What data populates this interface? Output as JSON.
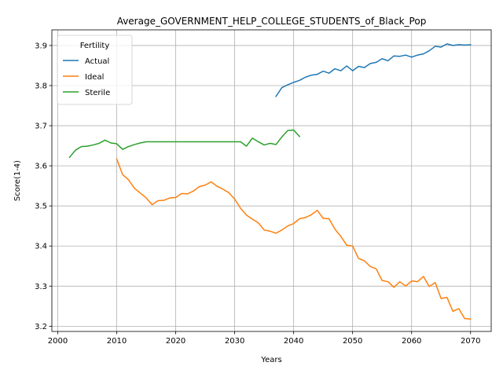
{
  "chart_data": {
    "type": "line",
    "title": "Average_GOVERNMENT_HELP_COLLEGE_STUDENTS_of_Black_Pop",
    "xlabel": "Years",
    "ylabel": "Score(1-4)",
    "xlim": [
      1999,
      2073.5
    ],
    "ylim": [
      3.187,
      3.939
    ],
    "xticks": [
      2000,
      2010,
      2020,
      2030,
      2040,
      2050,
      2060,
      2070
    ],
    "yticks": [
      3.2,
      3.3,
      3.4,
      3.5,
      3.6,
      3.7,
      3.8,
      3.9
    ],
    "xtick_labels": [
      "2000",
      "2010",
      "2020",
      "2030",
      "2040",
      "2050",
      "2060",
      "2070"
    ],
    "ytick_labels": [
      "3.2",
      "3.3",
      "3.4",
      "3.5",
      "3.6",
      "3.7",
      "3.8",
      "3.9"
    ],
    "grid": true,
    "legend": {
      "title": "Fertility",
      "position": "top-left"
    },
    "series": [
      {
        "name": "Actual",
        "color": "#1f77b4",
        "x": [
          2037,
          2038,
          2039,
          2040,
          2041,
          2042,
          2043,
          2044,
          2045,
          2046,
          2047,
          2048,
          2049,
          2050,
          2051,
          2052,
          2053,
          2054,
          2055,
          2056,
          2057,
          2058,
          2059,
          2060,
          2061,
          2062,
          2063,
          2064,
          2065,
          2066,
          2067,
          2068,
          2069,
          2070
        ],
        "values": [
          3.773,
          3.795,
          3.802,
          3.808,
          3.813,
          3.821,
          3.826,
          3.828,
          3.836,
          3.831,
          3.842,
          3.837,
          3.849,
          3.837,
          3.848,
          3.845,
          3.855,
          3.858,
          3.867,
          3.862,
          3.874,
          3.873,
          3.876,
          3.871,
          3.876,
          3.879,
          3.887,
          3.898,
          3.896,
          3.904,
          3.9,
          3.902,
          3.901,
          3.902
        ]
      },
      {
        "name": "Ideal",
        "color": "#ff7f0e",
        "x": [
          2010,
          2011,
          2012,
          2013,
          2014,
          2015,
          2016,
          2017,
          2018,
          2019,
          2020,
          2021,
          2022,
          2023,
          2024,
          2025,
          2026,
          2027,
          2028,
          2029,
          2030,
          2031,
          2032,
          2033,
          2034,
          2035,
          2036,
          2037,
          2038,
          2039,
          2040,
          2041,
          2042,
          2043,
          2044,
          2045,
          2046,
          2047,
          2048,
          2049,
          2050,
          2051,
          2052,
          2053,
          2054,
          2055,
          2056,
          2057,
          2058,
          2059,
          2060,
          2061,
          2062,
          2063,
          2064,
          2065,
          2066,
          2067,
          2068,
          2069,
          2070
        ],
        "values": [
          3.617,
          3.578,
          3.565,
          3.544,
          3.532,
          3.52,
          3.503,
          3.513,
          3.514,
          3.52,
          3.521,
          3.531,
          3.53,
          3.537,
          3.548,
          3.552,
          3.56,
          3.549,
          3.542,
          3.533,
          3.517,
          3.494,
          3.477,
          3.467,
          3.458,
          3.44,
          3.437,
          3.432,
          3.44,
          3.45,
          3.456,
          3.468,
          3.471,
          3.478,
          3.489,
          3.469,
          3.468,
          3.442,
          3.424,
          3.402,
          3.4,
          3.369,
          3.363,
          3.349,
          3.343,
          3.314,
          3.311,
          3.297,
          3.311,
          3.3,
          3.313,
          3.311,
          3.324,
          3.299,
          3.309,
          3.269,
          3.272,
          3.237,
          3.244,
          3.219,
          3.218
        ]
      },
      {
        "name": "Sterile",
        "color": "#2ca02c",
        "x": [
          2002,
          2003,
          2004,
          2005,
          2006,
          2007,
          2008,
          2009,
          2010,
          2011,
          2012,
          2013,
          2014,
          2015,
          2016,
          2017,
          2018,
          2019,
          2020,
          2021,
          2022,
          2023,
          2024,
          2025,
          2026,
          2027,
          2028,
          2029,
          2030,
          2031,
          2032,
          2033,
          2034,
          2035,
          2036,
          2037,
          2038,
          2039,
          2040,
          2041
        ],
        "values": [
          3.621,
          3.639,
          3.648,
          3.649,
          3.652,
          3.656,
          3.664,
          3.657,
          3.655,
          3.641,
          3.648,
          3.653,
          3.657,
          3.66,
          3.66,
          3.66,
          3.66,
          3.66,
          3.66,
          3.66,
          3.66,
          3.66,
          3.66,
          3.66,
          3.66,
          3.66,
          3.66,
          3.66,
          3.66,
          3.66,
          3.649,
          3.669,
          3.66,
          3.652,
          3.656,
          3.653,
          3.672,
          3.688,
          3.689,
          3.673
        ]
      }
    ]
  }
}
